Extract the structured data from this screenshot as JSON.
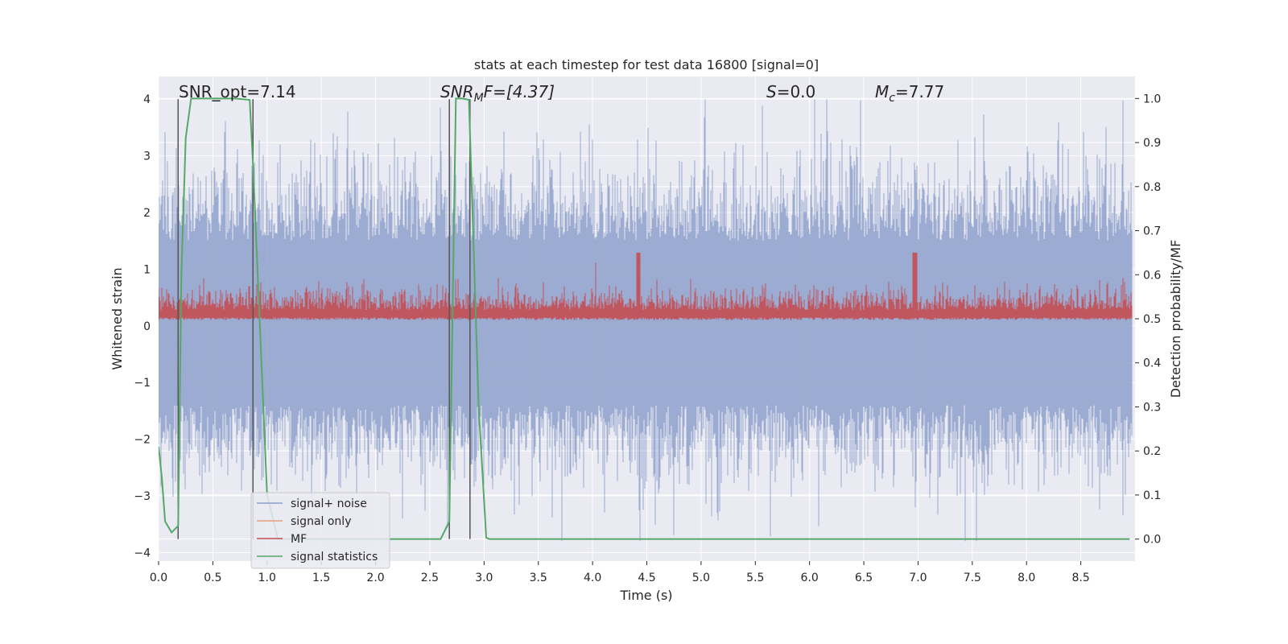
{
  "chart_data": {
    "type": "line",
    "title": "stats at each timestep for test data 16800 [signal=0]",
    "xlabel": "Time (s)",
    "ylabel": "Whitened strain",
    "ylabel_right": "Detection probability/MF",
    "xlim": [
      0.0,
      9.0
    ],
    "ylim": [
      -4.15,
      4.4
    ],
    "ylim_right": [
      -0.05,
      1.05
    ],
    "x_ticks": [
      "0.0",
      "0.5",
      "1.0",
      "1.5",
      "2.0",
      "2.5",
      "3.0",
      "3.5",
      "4.0",
      "4.5",
      "5.0",
      "5.5",
      "6.0",
      "6.5",
      "7.0",
      "7.5",
      "8.0",
      "8.5"
    ],
    "x_tick_values": [
      0.0,
      0.5,
      1.0,
      1.5,
      2.0,
      2.5,
      3.0,
      3.5,
      4.0,
      4.5,
      5.0,
      5.5,
      6.0,
      6.5,
      7.0,
      7.5,
      8.0,
      8.5
    ],
    "y_ticks": [
      "4",
      "3",
      "2",
      "1",
      "0",
      "−1",
      "−2",
      "−3",
      "−4"
    ],
    "y_tick_values": [
      4,
      3,
      2,
      1,
      0,
      -1,
      -2,
      -3,
      -4
    ],
    "y_ticks_right": [
      "1.0",
      "0.9",
      "0.8",
      "0.7",
      "0.6",
      "0.5",
      "0.4",
      "0.3",
      "0.2",
      "0.1",
      "0.0"
    ],
    "y_tick_values_right": [
      1.0,
      0.9,
      0.8,
      0.7,
      0.6,
      0.5,
      0.4,
      0.3,
      0.2,
      0.1,
      0.0
    ],
    "annotations": {
      "snr_opt": "SNR_opt=7.14",
      "snr_mf_main": "SNR",
      "snr_mf_sub": "M",
      "snr_mf_rest": "F=[4.37]",
      "s_main": "S",
      "s_rest": "=0.0",
      "mc_main": "M",
      "mc_sub": "c",
      "mc_rest": "=7.77"
    },
    "vlines_x": [
      0.18,
      0.87,
      2.68,
      2.87
    ],
    "series": [
      {
        "name": "signal+ noise",
        "color": "#8da0cb",
        "kind": "noise",
        "amplitude_envelope": [
          -3.8,
          4.0
        ]
      },
      {
        "name": "signal only",
        "color": "#e8a07d",
        "kind": "flat",
        "values": []
      },
      {
        "name": "MF",
        "color": "#c44e52",
        "kind": "mf",
        "right_axis_range": [
          0.5,
          0.62
        ],
        "peaks_x": [
          4.42,
          6.97
        ]
      },
      {
        "name": "signal statistics",
        "color": "#55a868",
        "kind": "line",
        "axis": "right",
        "x": [
          0.0,
          0.03,
          0.06,
          0.12,
          0.18,
          0.21,
          0.25,
          0.3,
          0.35,
          0.5,
          0.7,
          0.84,
          0.87,
          1.0,
          1.1,
          1.3,
          1.5,
          2.0,
          2.5,
          2.6,
          2.68,
          2.74,
          2.8,
          2.86,
          2.95,
          3.02,
          3.05,
          3.2,
          4.0,
          5.0,
          6.0,
          7.0,
          8.0,
          8.95
        ],
        "values": [
          0.21,
          0.14,
          0.04,
          0.015,
          0.03,
          0.6,
          0.91,
          1.0,
          1.0,
          1.0,
          1.0,
          0.997,
          0.85,
          0.1,
          0.0,
          0.0,
          0.0,
          0.0,
          0.0,
          0.0,
          0.04,
          1.0,
          1.0,
          0.997,
          0.3,
          0.003,
          0.0,
          0.0,
          0.0,
          0.0,
          0.0,
          0.0,
          0.0,
          0.0
        ]
      }
    ],
    "legend": {
      "placement": "lower-left",
      "entries": [
        "signal+ noise",
        "signal only",
        "MF",
        "signal statistics"
      ]
    }
  }
}
